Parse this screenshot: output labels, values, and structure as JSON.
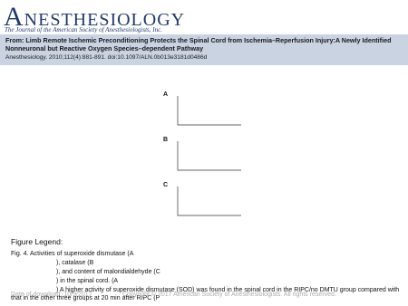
{
  "header": {
    "logo": "ANESTHESIOLOGY",
    "journal": "The Journal of the American Society of Anesthesiologists, Inc."
  },
  "article": {
    "title": "From: Limb Remote Ischemic Preconditioning Protects the Spinal Cord from Ischemia–Reperfusion Injury:A Newly Identified Nonneuronal but Reactive Oxygen Species–dependent Pathway",
    "citation": "Anesthesiology. 2010;112(4):881-891. doi:10.1097/ALN.0b013e3181d0486d"
  },
  "figure": {
    "panels": [
      "A",
      "B",
      "C"
    ]
  },
  "legend": {
    "heading": "Figure Legend:",
    "lines": [
      "Fig. 4. Activities of superoxide dismutase (A",
      "), catalase (B",
      "), and content of malondialdehyde (C",
      ") in the spinal cord. (A",
      ") A higher activity of superoxide dismutase (SOD) was found in the spinal cord in the RIPC/no DMTU group compared with that in the other three groups at 20 min after RIPC (P"
    ]
  },
  "footer": {
    "date": "Date of download: 10/9/2017",
    "copyright": "Copyright © 2017 American Society of Anesthesiologists. All rights reserved."
  }
}
